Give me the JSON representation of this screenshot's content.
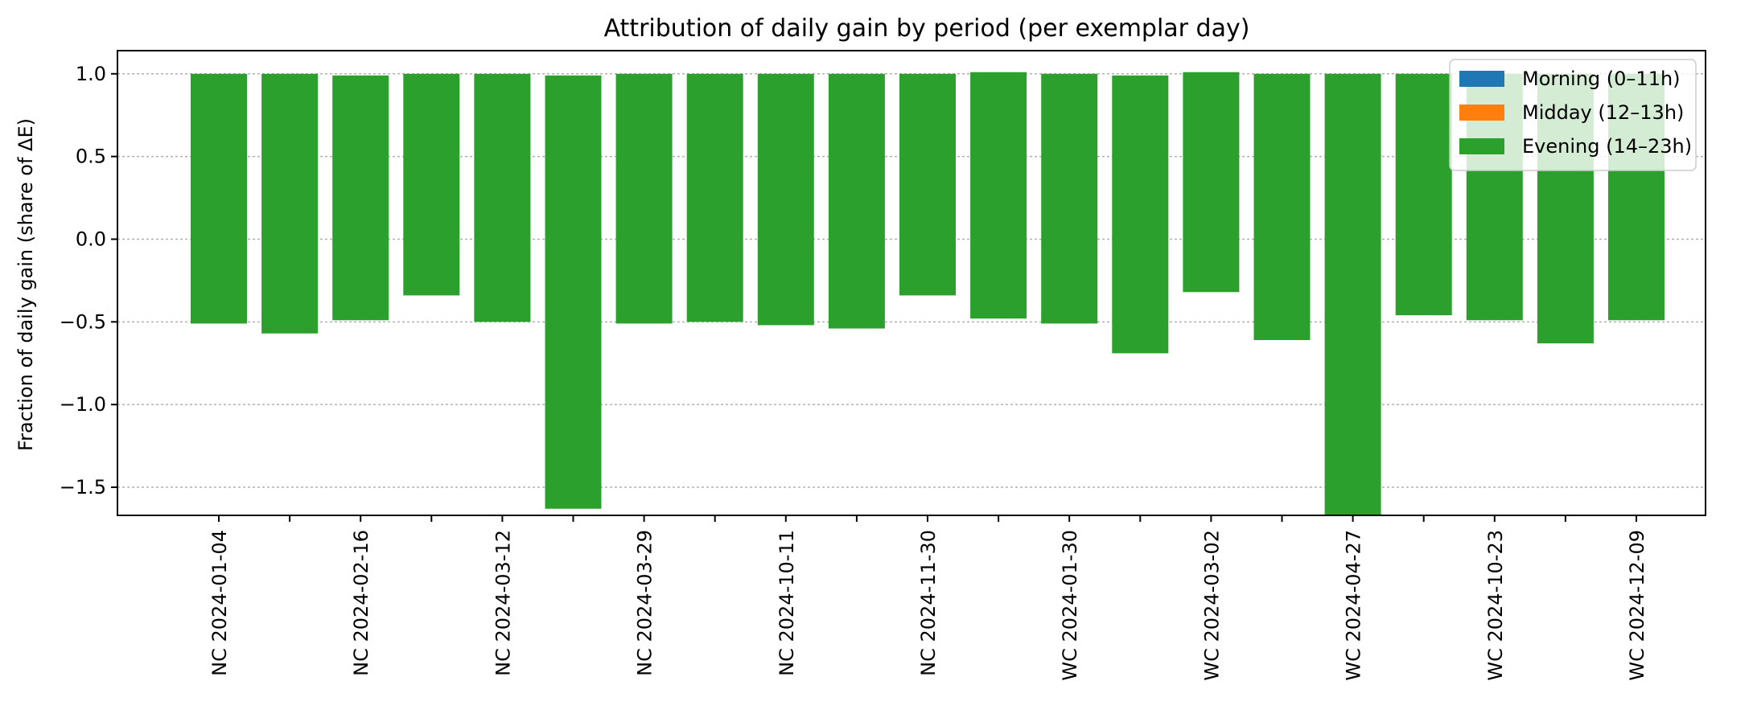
{
  "chart_data": {
    "type": "bar",
    "stacked": true,
    "title": "Attribution of daily gain by period (per exemplar day)",
    "xlabel": "",
    "ylabel": "Fraction of daily gain (share of ΔE)",
    "ylim": [
      -1.67,
      1.14
    ],
    "yticks": [
      1.0,
      0.5,
      0.0,
      -0.5,
      -1.0,
      -1.5
    ],
    "ytick_labels": [
      "1.0",
      "0.5",
      "0.0",
      "−0.5",
      "−1.0",
      "−1.5"
    ],
    "grid": "y",
    "legend_position": "top-right",
    "x_tick_labels": [
      "NC 2024-01-04",
      "NC 2024-02-16",
      "NC 2024-03-12",
      "NC 2024-03-29",
      "NC 2024-10-11",
      "NC 2024-11-30",
      "WC 2024-01-30",
      "WC 2024-03-02",
      "WC 2024-04-27",
      "WC 2024-10-23",
      "WC 2024-12-09"
    ],
    "x_tick_label_every": 2,
    "bar_count": 21,
    "series": [
      {
        "name": "Morning (0–11h)",
        "color": "#1f77b4",
        "pos": [
          0,
          0,
          0,
          0,
          0,
          0,
          0,
          0,
          0,
          0,
          0,
          0,
          0,
          0,
          0,
          0,
          0,
          0,
          0,
          0,
          0
        ],
        "neg": [
          0,
          0,
          0,
          0,
          0,
          0,
          0,
          0,
          0,
          0,
          0,
          0,
          0,
          0,
          0,
          0,
          0,
          0,
          0,
          0,
          0
        ]
      },
      {
        "name": "Midday (12–13h)",
        "color": "#ff7f0e",
        "pos": [
          0,
          0,
          0,
          0,
          0,
          0,
          0,
          0,
          0,
          0,
          0,
          0,
          0,
          0,
          0,
          0,
          0,
          0,
          0,
          0,
          0
        ],
        "neg": [
          0,
          0,
          0,
          0,
          0,
          0,
          0,
          0,
          0,
          0,
          0,
          0,
          0,
          0,
          0,
          0,
          0,
          0,
          0,
          0,
          0
        ]
      },
      {
        "name": "Evening (14–23h)",
        "color": "#2ca02c",
        "pos": [
          1.0,
          1.0,
          0.99,
          1.0,
          1.0,
          0.99,
          1.0,
          1.0,
          1.0,
          1.0,
          1.0,
          1.01,
          1.0,
          0.99,
          1.01,
          1.0,
          1.0,
          1.0,
          1.0,
          1.0,
          1.0
        ],
        "neg": [
          -0.51,
          -0.57,
          -0.49,
          -0.34,
          -0.5,
          -1.63,
          -0.51,
          -0.5,
          -0.52,
          -0.54,
          -0.34,
          -0.48,
          -0.51,
          -0.69,
          -0.32,
          -0.61,
          -1.67,
          -0.46,
          -0.49,
          -0.63,
          -0.49
        ]
      }
    ]
  }
}
